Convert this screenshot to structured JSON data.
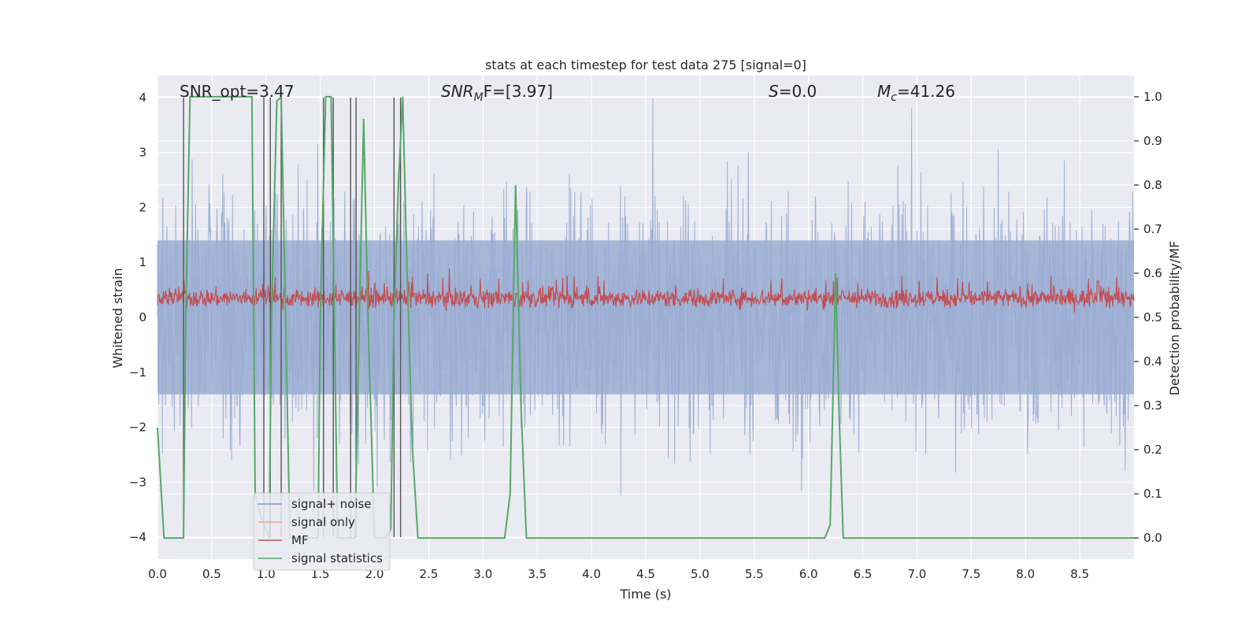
{
  "chart_data": {
    "type": "line",
    "title": "stats at each timestep for test data 275 [signal=0]",
    "xlabel": "Time (s)",
    "ylabel_left": "Whitened strain",
    "ylabel_right": "Detection probability/MF",
    "xlim": [
      0.0,
      9.0
    ],
    "ylim_left": [
      -4.4,
      4.4
    ],
    "ylim_right": [
      -0.048,
      1.048
    ],
    "xticks": [
      "0.0",
      "0.5",
      "1.0",
      "1.5",
      "2.0",
      "2.5",
      "3.0",
      "3.5",
      "4.0",
      "4.5",
      "5.0",
      "5.5",
      "6.0",
      "6.5",
      "7.0",
      "7.5",
      "8.0",
      "8.5"
    ],
    "xtick_values": [
      0.0,
      0.5,
      1.0,
      1.5,
      2.0,
      2.5,
      3.0,
      3.5,
      4.0,
      4.5,
      5.0,
      5.5,
      6.0,
      6.5,
      7.0,
      7.5,
      8.0,
      8.5
    ],
    "yticks_left": [
      "4",
      "3",
      "2",
      "1",
      "0",
      "−1",
      "−2",
      "−3",
      "−4"
    ],
    "ytick_left_values": [
      4,
      3,
      2,
      1,
      0,
      -1,
      -2,
      -3,
      -4
    ],
    "yticks_right": [
      "1.0",
      "0.9",
      "0.8",
      "0.7",
      "0.6",
      "0.5",
      "0.4",
      "0.3",
      "0.2",
      "0.1",
      "0.0"
    ],
    "ytick_right_values": [
      1.0,
      0.9,
      0.8,
      0.7,
      0.6,
      0.5,
      0.4,
      0.3,
      0.2,
      0.1,
      0.0
    ],
    "annotations": {
      "snr_opt_label": "SNR_opt=3.47",
      "snr_mf_prefix": "SNR",
      "snr_mf_sub": "M",
      "snr_mf_suffix": "F=[3.97]",
      "s_prefix": "S",
      "s_suffix": "=0.0",
      "mc_prefix": "M",
      "mc_sub": "c",
      "mc_suffix": "=41.26"
    },
    "legend": {
      "position": "lower-left",
      "entries": [
        {
          "label": "signal+ noise",
          "color": "#7f9ccb"
        },
        {
          "label": "signal only",
          "color": "#e8a98e"
        },
        {
          "label": "MF",
          "color": "#c44e52"
        },
        {
          "label": "signal statistics",
          "color": "#55a868"
        }
      ]
    },
    "noise_series": {
      "name": "signal+ noise",
      "color": "#9aadd2",
      "amplitude_envelope": 2.0,
      "peak_range": [
        -4.0,
        4.0
      ]
    },
    "mf_series": {
      "name": "MF",
      "color": "#c44e52",
      "band_range": [
        0.05,
        0.75
      ]
    },
    "signal_statistics": {
      "name": "signal statistics",
      "color": "#55a868",
      "x": [
        0.0,
        0.06,
        0.1,
        0.24,
        0.26,
        0.3,
        0.52,
        0.55,
        0.87,
        0.9,
        0.95,
        1.03,
        1.05,
        1.1,
        1.14,
        1.18,
        1.22,
        1.26,
        1.3,
        1.48,
        1.5,
        1.55,
        1.6,
        1.63,
        1.66,
        1.7,
        1.78,
        1.82,
        1.86,
        1.9,
        1.94,
        2.0,
        2.05,
        2.1,
        2.15,
        2.18,
        2.22,
        2.26,
        2.3,
        2.35,
        2.4,
        3.2,
        3.25,
        3.3,
        3.35,
        3.4,
        6.15,
        6.2,
        6.25,
        6.28,
        6.32,
        6.4,
        9.0
      ],
      "y": [
        0.25,
        0.0,
        0.0,
        0.0,
        0.5,
        1.0,
        1.0,
        1.0,
        1.0,
        0.1,
        0.05,
        0.0,
        0.5,
        0.99,
        1.0,
        0.5,
        0.0,
        0.0,
        0.0,
        0.0,
        0.5,
        1.0,
        1.0,
        0.5,
        0.0,
        0.0,
        0.0,
        0.0,
        0.5,
        0.95,
        0.5,
        0.0,
        0.0,
        0.0,
        0.02,
        0.5,
        0.8,
        1.0,
        0.6,
        0.2,
        0.0,
        0.0,
        0.1,
        0.8,
        0.3,
        0.0,
        0.0,
        0.03,
        0.6,
        0.3,
        0.0,
        0.0,
        0.0
      ]
    },
    "vertical_lines_x": [
      0.24,
      0.98,
      1.04,
      1.14,
      1.53,
      1.62,
      1.78,
      1.83,
      2.18,
      2.24
    ],
    "vertical_line_color": "#555555"
  }
}
